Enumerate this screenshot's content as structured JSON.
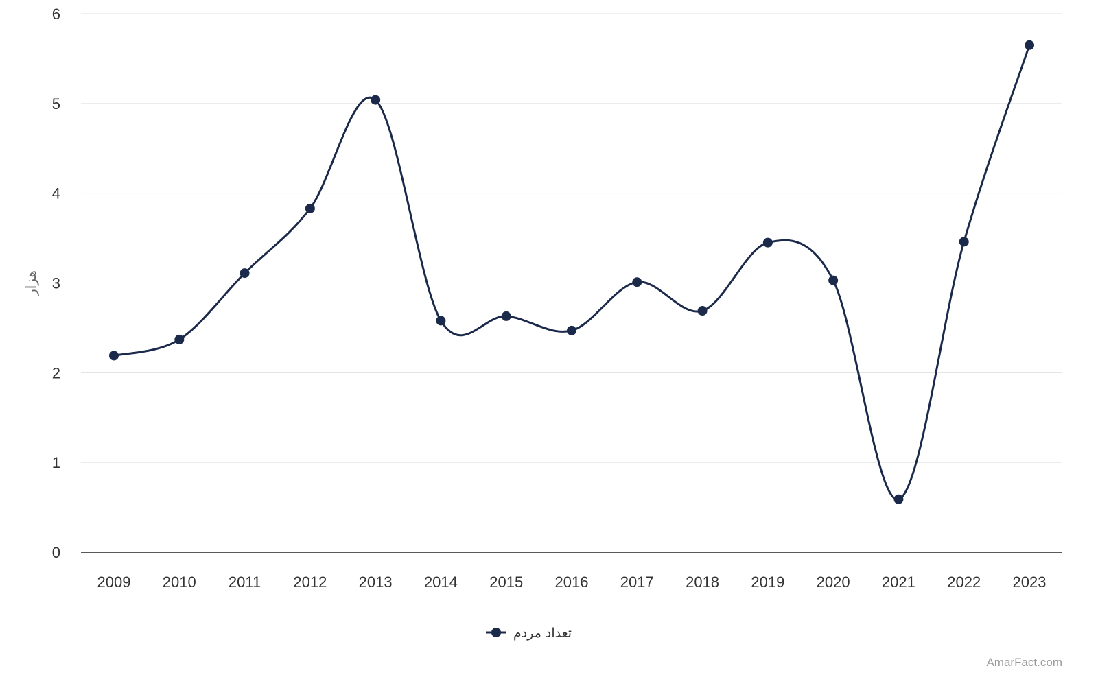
{
  "chart_data": {
    "type": "line",
    "categories": [
      "2009",
      "2010",
      "2011",
      "2012",
      "2013",
      "2014",
      "2015",
      "2016",
      "2017",
      "2018",
      "2019",
      "2020",
      "2021",
      "2022",
      "2023"
    ],
    "series": [
      {
        "name": "تعداد مردم",
        "color": "#1b2a4a",
        "values": [
          2.19,
          2.37,
          3.11,
          3.83,
          5.04,
          2.58,
          2.63,
          2.47,
          3.01,
          2.69,
          3.45,
          3.03,
          0.59,
          3.46,
          5.65
        ]
      }
    ],
    "title": "",
    "xlabel": "",
    "ylabel": "هزار",
    "ylim": [
      0,
      6
    ],
    "yticks": [
      "0",
      "1",
      "2",
      "3",
      "4",
      "5",
      "6"
    ],
    "grid": true,
    "legend_position": "bottom-center",
    "smooth": true,
    "markers": true
  },
  "watermark": "AmarFact.com"
}
